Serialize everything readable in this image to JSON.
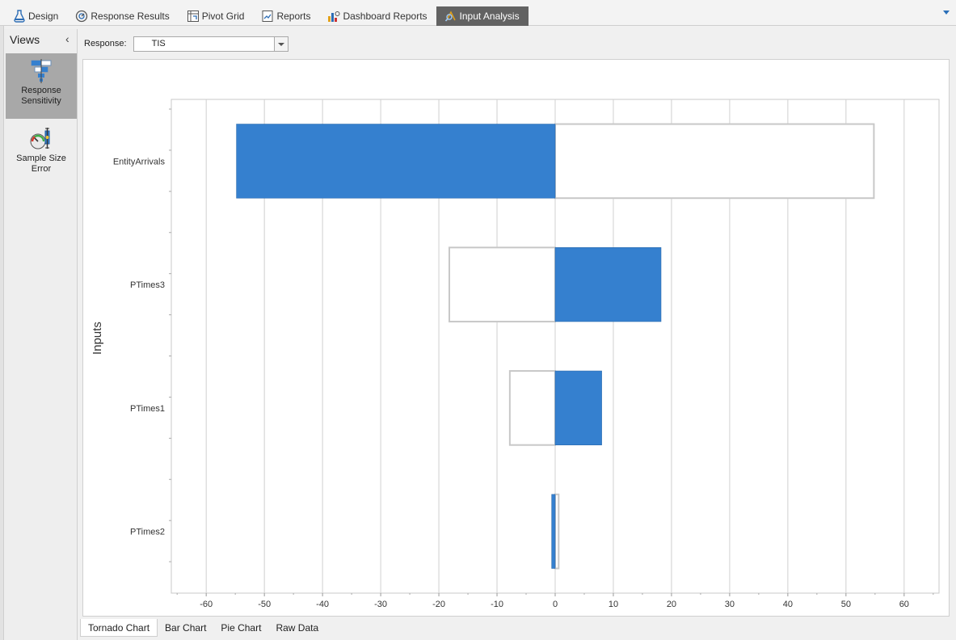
{
  "top_tabs": [
    {
      "label": "Design",
      "icon": "flask-icon",
      "active": false
    },
    {
      "label": "Response Results",
      "icon": "gauge-icon",
      "active": false
    },
    {
      "label": "Pivot Grid",
      "icon": "pivot-grid-icon",
      "active": false
    },
    {
      "label": "Reports",
      "icon": "report-icon",
      "active": false
    },
    {
      "label": "Dashboard Reports",
      "icon": "dashboard-icon",
      "active": false
    },
    {
      "label": "Input Analysis",
      "icon": "input-analysis-icon",
      "active": true
    }
  ],
  "views": {
    "title": "Views",
    "items": [
      {
        "label_line1": "Response",
        "label_line2": "Sensitivity",
        "icon": "tornado-icon",
        "selected": true
      },
      {
        "label_line1": "Sample Size",
        "label_line2": "Error",
        "icon": "sample-size-icon",
        "selected": false
      }
    ]
  },
  "response": {
    "label": "Response:",
    "value": "TIS"
  },
  "colors": {
    "bar_fill": "#3580cf",
    "bar_outline": "#c8c8c8",
    "grid": "#d0d0d0",
    "active_tab": "#626262"
  },
  "chart_data": {
    "type": "bar",
    "orientation": "horizontal",
    "subtype": "tornado",
    "title": "",
    "xlabel": "",
    "ylabel": "Inputs",
    "xlim": [
      -66,
      66
    ],
    "xticks": [
      -60,
      -50,
      -40,
      -30,
      -20,
      -10,
      0,
      10,
      20,
      30,
      40,
      50,
      60
    ],
    "grid": true,
    "categories": [
      "EntityArrivals",
      "PTimes3",
      "PTimes1",
      "PTimes2"
    ],
    "series": [
      {
        "values": [
          -54.8,
          18.2,
          8.0,
          -0.6
        ]
      },
      {
        "values": [
          54.8,
          -18.2,
          -7.8,
          0.6
        ]
      }
    ]
  },
  "bottom_tabs": [
    {
      "label": "Tornado Chart",
      "active": true
    },
    {
      "label": "Bar Chart",
      "active": false
    },
    {
      "label": "Pie Chart",
      "active": false
    },
    {
      "label": "Raw Data",
      "active": false
    }
  ]
}
